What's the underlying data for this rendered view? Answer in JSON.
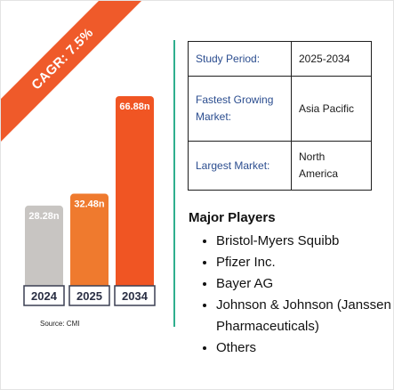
{
  "ribbon": {
    "text": "CAGR: 7.5%",
    "color": "#ef5a2a"
  },
  "chart_data": {
    "type": "bar",
    "categories": [
      "2024",
      "2025",
      "2034"
    ],
    "values": [
      28.28,
      32.48,
      66.88
    ],
    "data_labels": [
      "28.28n",
      "32.48n",
      "66.88n"
    ],
    "colors": [
      "#c8c5c2",
      "#ef7a2e",
      "#f05523"
    ],
    "ylim": [
      0,
      70
    ],
    "grid": false,
    "source": "Source: CMI"
  },
  "info_table": {
    "rows": [
      {
        "label": "Study Period:",
        "value": "2025-2034"
      },
      {
        "label": "Fastest Growing Market:",
        "value": "Asia Pacific"
      },
      {
        "label": "Largest Market:",
        "value": "North America"
      }
    ]
  },
  "players": {
    "title": "Major Players",
    "items": [
      "Bristol-Myers Squibb",
      "Pfizer Inc.",
      "Bayer AG",
      "Johnson & Johnson (Janssen Pharmaceuticals)",
      "Others"
    ]
  }
}
